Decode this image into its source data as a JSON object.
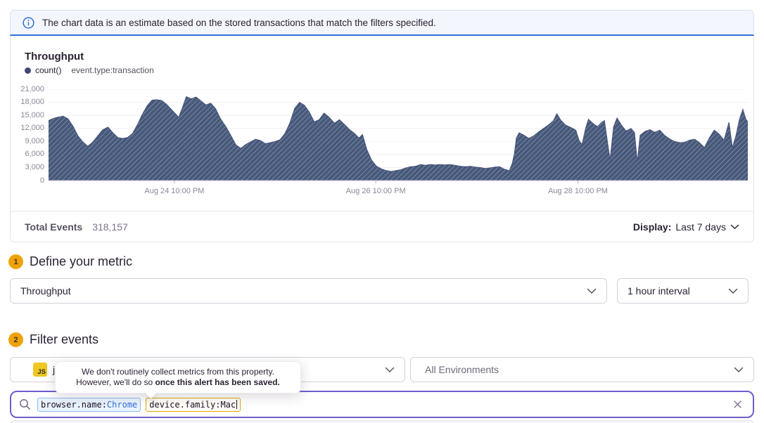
{
  "banner": {
    "text": "The chart data is an estimate based on the stored transactions that match the filters specified.",
    "icon": "info-icon"
  },
  "chart_panel": {
    "title": "Throughput",
    "legend": {
      "series": "count()",
      "filter": "event.type:transaction"
    },
    "footer": {
      "total_label": "Total Events",
      "total_value": "318,157",
      "display_label": "Display:",
      "display_value": "Last 7 days"
    }
  },
  "chart_data": {
    "type": "area",
    "title": "Throughput",
    "legend": [
      "count()"
    ],
    "series_filter": "event.type:transaction",
    "ylim": [
      0,
      21000
    ],
    "y_ticks": [
      0,
      3000,
      6000,
      9000,
      12000,
      15000,
      18000,
      21000
    ],
    "x_tick_labels": [
      "Aug 24 10:00 PM",
      "Aug 26 10:00 PM",
      "Aug 28 10:00 PM"
    ],
    "x_tick_positions": [
      0.18,
      0.468,
      0.757
    ],
    "grid": true,
    "fill_style": "diagonal-hatch",
    "points": [
      [
        0,
        13800
      ],
      [
        0.007,
        14300
      ],
      [
        0.014,
        14600
      ],
      [
        0.021,
        14800
      ],
      [
        0.028,
        14200
      ],
      [
        0.035,
        12500
      ],
      [
        0.042,
        10300
      ],
      [
        0.049,
        8900
      ],
      [
        0.056,
        7900
      ],
      [
        0.063,
        8800
      ],
      [
        0.07,
        10200
      ],
      [
        0.077,
        11600
      ],
      [
        0.085,
        12300
      ],
      [
        0.092,
        11000
      ],
      [
        0.099,
        9900
      ],
      [
        0.106,
        9700
      ],
      [
        0.113,
        9900
      ],
      [
        0.12,
        10800
      ],
      [
        0.127,
        12800
      ],
      [
        0.134,
        15200
      ],
      [
        0.141,
        17200
      ],
      [
        0.148,
        18500
      ],
      [
        0.155,
        18600
      ],
      [
        0.162,
        18400
      ],
      [
        0.169,
        17500
      ],
      [
        0.176,
        16300
      ],
      [
        0.183,
        15100
      ],
      [
        0.186,
        14500
      ],
      [
        0.192,
        17000
      ],
      [
        0.197,
        19300
      ],
      [
        0.204,
        18800
      ],
      [
        0.211,
        19200
      ],
      [
        0.218,
        18300
      ],
      [
        0.225,
        17400
      ],
      [
        0.232,
        17800
      ],
      [
        0.239,
        16500
      ],
      [
        0.246,
        14200
      ],
      [
        0.254,
        12300
      ],
      [
        0.261,
        10300
      ],
      [
        0.268,
        8200
      ],
      [
        0.275,
        7400
      ],
      [
        0.282,
        8300
      ],
      [
        0.289,
        8900
      ],
      [
        0.296,
        9500
      ],
      [
        0.303,
        9200
      ],
      [
        0.31,
        8500
      ],
      [
        0.317,
        8700
      ],
      [
        0.324,
        9000
      ],
      [
        0.331,
        9400
      ],
      [
        0.338,
        10800
      ],
      [
        0.345,
        13200
      ],
      [
        0.352,
        16600
      ],
      [
        0.359,
        18000
      ],
      [
        0.366,
        17300
      ],
      [
        0.373,
        15700
      ],
      [
        0.38,
        13500
      ],
      [
        0.387,
        14000
      ],
      [
        0.394,
        15500
      ],
      [
        0.401,
        14600
      ],
      [
        0.409,
        13200
      ],
      [
        0.416,
        14000
      ],
      [
        0.423,
        12900
      ],
      [
        0.43,
        11800
      ],
      [
        0.437,
        10900
      ],
      [
        0.444,
        9800
      ],
      [
        0.449,
        10600
      ],
      [
        0.455,
        7200
      ],
      [
        0.462,
        4700
      ],
      [
        0.469,
        3300
      ],
      [
        0.476,
        2700
      ],
      [
        0.483,
        2300
      ],
      [
        0.49,
        2100
      ],
      [
        0.497,
        2300
      ],
      [
        0.504,
        2500
      ],
      [
        0.511,
        2900
      ],
      [
        0.518,
        3200
      ],
      [
        0.525,
        3300
      ],
      [
        0.532,
        3700
      ],
      [
        0.539,
        3500
      ],
      [
        0.546,
        3700
      ],
      [
        0.553,
        3600
      ],
      [
        0.56,
        3700
      ],
      [
        0.567,
        3600
      ],
      [
        0.574,
        3700
      ],
      [
        0.581,
        3500
      ],
      [
        0.589,
        3300
      ],
      [
        0.596,
        3200
      ],
      [
        0.603,
        3300
      ],
      [
        0.61,
        3100
      ],
      [
        0.617,
        3000
      ],
      [
        0.624,
        2800
      ],
      [
        0.631,
        2900
      ],
      [
        0.638,
        3100
      ],
      [
        0.645,
        3200
      ],
      [
        0.652,
        2600
      ],
      [
        0.659,
        2300
      ],
      [
        0.663,
        3900
      ],
      [
        0.666,
        6000
      ],
      [
        0.669,
        9800
      ],
      [
        0.673,
        11000
      ],
      [
        0.68,
        10400
      ],
      [
        0.687,
        9700
      ],
      [
        0.694,
        10300
      ],
      [
        0.701,
        11200
      ],
      [
        0.708,
        12000
      ],
      [
        0.715,
        12800
      ],
      [
        0.722,
        13800
      ],
      [
        0.727,
        15400
      ],
      [
        0.732,
        14000
      ],
      [
        0.739,
        12800
      ],
      [
        0.747,
        12200
      ],
      [
        0.754,
        11600
      ],
      [
        0.759,
        9100
      ],
      [
        0.763,
        8300
      ],
      [
        0.768,
        12000
      ],
      [
        0.772,
        14100
      ],
      [
        0.778,
        13200
      ],
      [
        0.785,
        12400
      ],
      [
        0.791,
        13400
      ],
      [
        0.795,
        13800
      ],
      [
        0.799,
        9200
      ],
      [
        0.803,
        4800
      ],
      [
        0.808,
        12400
      ],
      [
        0.813,
        14400
      ],
      [
        0.819,
        12800
      ],
      [
        0.826,
        11400
      ],
      [
        0.833,
        12000
      ],
      [
        0.838,
        11000
      ],
      [
        0.842,
        4300
      ],
      [
        0.846,
        10400
      ],
      [
        0.853,
        11300
      ],
      [
        0.86,
        11700
      ],
      [
        0.867,
        11100
      ],
      [
        0.874,
        11600
      ],
      [
        0.881,
        10400
      ],
      [
        0.888,
        9600
      ],
      [
        0.895,
        9000
      ],
      [
        0.903,
        8700
      ],
      [
        0.91,
        8800
      ],
      [
        0.917,
        9300
      ],
      [
        0.924,
        9500
      ],
      [
        0.931,
        8700
      ],
      [
        0.938,
        7600
      ],
      [
        0.945,
        9800
      ],
      [
        0.952,
        11600
      ],
      [
        0.959,
        10700
      ],
      [
        0.966,
        9300
      ],
      [
        0.973,
        13400
      ],
      [
        0.978,
        7600
      ],
      [
        0.983,
        10300
      ],
      [
        0.988,
        14100
      ],
      [
        0.993,
        16400
      ],
      [
        0.997,
        14200
      ],
      [
        1,
        13500
      ]
    ]
  },
  "sections": {
    "metric": {
      "number": "1",
      "title": "Define your metric",
      "metric_select_value": "Throughput",
      "interval_select_value": "1 hour interval"
    },
    "filter": {
      "number": "2",
      "title": "Filter events",
      "project_badge": "JS",
      "project_name_visible": "j",
      "environment_select_value": "All Environments"
    }
  },
  "tooltip": {
    "line1": "We don't routinely collect metrics from this property.",
    "line2_prefix": "However, we'll do so ",
    "line2_bold": "once this alert has been saved."
  },
  "search": {
    "tokens": [
      {
        "key": "browser.name:",
        "value": "Chrome"
      },
      {
        "key": "device.family:",
        "value": "Mac"
      }
    ]
  },
  "colors": {
    "accent_purple": "#6c5ec9",
    "banner_blue": "#2f6fd8",
    "amber_badge": "#efa302",
    "js_yellow": "#edc723",
    "chart_fill": "#47597b",
    "chart_stripe": "#97a2b6",
    "legend_dot": "#444674",
    "muted_text": "#80708f",
    "token_blue_border": "#8fbcef",
    "token_amber_border": "#e2a604"
  }
}
